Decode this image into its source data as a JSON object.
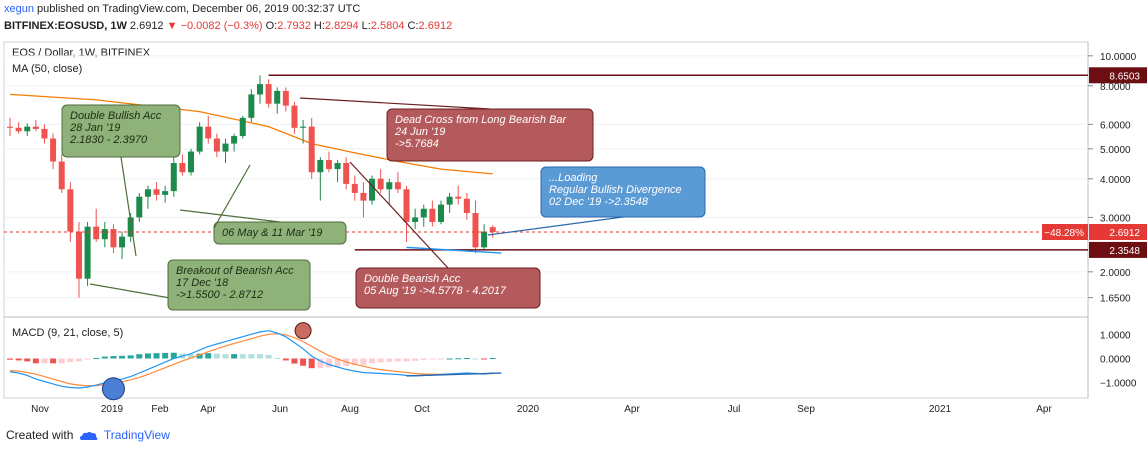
{
  "header": {
    "user": "xegun",
    "published_text": "published on TradingView.com, December 06, 2019 00:32:37 UTC",
    "symbol": "BITFINEX:EOSUSD, 1W",
    "last": "2.6912",
    "change": "▼ −0.0082 (−0.3%)",
    "o_label": "O:",
    "o_value": "2.7932",
    "h_label": "H:",
    "h_value": "2.8294",
    "l_label": "L:",
    "l_value": "2.5804",
    "c_label": "C:",
    "c_value": "2.6912"
  },
  "legend": {
    "title": "EOS / Dollar, 1W, BITFINEX",
    "ma": "MA (50, close)",
    "macd": "MACD (9, 21, close, 5)"
  },
  "footer": {
    "created_with": "Created with",
    "brand": "TradingView"
  },
  "colors": {
    "up": "#26a69a",
    "up_body": "#1b8a4a",
    "down": "#ef5350",
    "ma": "#f57c00",
    "macd_line": "#2196f3",
    "signal_line": "#ff8a3d",
    "green_box": "#8fb27a",
    "red_box": "#b45a5c",
    "blue_box": "#5b9bd5",
    "line_dark_red": "#6d0f12",
    "marker_blue": "#2962ff"
  },
  "chart_data": {
    "type": "candlestick",
    "price_axis": {
      "scale": "log",
      "ticks": [
        "10.0000",
        "8.0000",
        "6.0000",
        "5.0000",
        "4.0000",
        "3.0000",
        "2.0000",
        "1.6500"
      ]
    },
    "x_tick_labels": [
      "Nov",
      "2019",
      "Feb",
      "Apr",
      "Jun",
      "Aug",
      "Oct",
      "2020",
      "Apr",
      "Jul",
      "Sep",
      "2021",
      "Apr"
    ],
    "candles_weekly": [
      [
        5.9,
        6.3,
        5.5,
        5.85
      ],
      [
        5.85,
        6.1,
        5.6,
        5.7
      ],
      [
        5.7,
        6.05,
        5.5,
        5.9
      ],
      [
        5.9,
        6.2,
        5.7,
        5.8
      ],
      [
        5.8,
        6.0,
        5.2,
        5.4
      ],
      [
        5.4,
        5.6,
        4.3,
        4.55
      ],
      [
        4.55,
        4.8,
        3.6,
        3.7
      ],
      [
        3.7,
        3.9,
        2.5,
        2.7
      ],
      [
        2.7,
        2.9,
        1.65,
        1.9
      ],
      [
        1.9,
        2.9,
        1.8,
        2.8
      ],
      [
        2.8,
        3.2,
        2.5,
        2.55
      ],
      [
        2.55,
        2.9,
        2.4,
        2.75
      ],
      [
        2.75,
        2.85,
        2.3,
        2.4
      ],
      [
        2.4,
        2.7,
        2.2,
        2.6
      ],
      [
        2.6,
        3.1,
        2.5,
        3.0
      ],
      [
        3.0,
        3.6,
        2.9,
        3.5
      ],
      [
        3.5,
        3.8,
        3.2,
        3.7
      ],
      [
        3.7,
        3.9,
        3.4,
        3.55
      ],
      [
        3.55,
        3.8,
        3.35,
        3.65
      ],
      [
        3.65,
        4.7,
        3.5,
        4.5
      ],
      [
        4.5,
        4.8,
        4.1,
        4.2
      ],
      [
        4.2,
        5.0,
        4.1,
        4.9
      ],
      [
        4.9,
        6.1,
        4.8,
        5.9
      ],
      [
        5.9,
        6.4,
        5.2,
        5.4
      ],
      [
        5.4,
        5.6,
        4.7,
        4.9
      ],
      [
        4.9,
        5.4,
        4.5,
        5.2
      ],
      [
        5.2,
        5.6,
        4.9,
        5.5
      ],
      [
        5.5,
        6.4,
        5.4,
        6.3
      ],
      [
        6.3,
        7.8,
        6.1,
        7.5
      ],
      [
        7.5,
        8.65,
        7.0,
        8.1
      ],
      [
        8.1,
        8.4,
        6.8,
        7.0
      ],
      [
        7.0,
        7.9,
        6.5,
        7.7
      ],
      [
        7.7,
        7.9,
        6.6,
        6.9
      ],
      [
        6.9,
        7.1,
        5.6,
        5.85
      ],
      [
        5.85,
        6.2,
        5.2,
        5.9
      ],
      [
        5.9,
        6.3,
        4.0,
        4.2
      ],
      [
        4.2,
        4.7,
        3.4,
        4.6
      ],
      [
        4.6,
        4.9,
        4.2,
        4.3
      ],
      [
        4.3,
        4.6,
        3.9,
        4.5
      ],
      [
        4.5,
        4.7,
        3.7,
        3.85
      ],
      [
        3.85,
        4.1,
        3.4,
        3.6
      ],
      [
        3.6,
        3.9,
        3.0,
        3.4
      ],
      [
        3.4,
        4.1,
        3.3,
        4.0
      ],
      [
        4.0,
        4.3,
        3.6,
        3.7
      ],
      [
        3.7,
        4.0,
        3.3,
        3.9
      ],
      [
        3.9,
        4.2,
        3.6,
        3.7
      ],
      [
        3.7,
        3.8,
        2.5,
        2.9
      ],
      [
        2.9,
        3.2,
        2.75,
        3.0
      ],
      [
        3.0,
        3.3,
        2.8,
        3.2
      ],
      [
        3.2,
        3.4,
        2.8,
        2.9
      ],
      [
        2.9,
        3.4,
        2.85,
        3.3
      ],
      [
        3.3,
        3.6,
        3.1,
        3.5
      ],
      [
        3.5,
        3.8,
        3.3,
        3.45
      ],
      [
        3.45,
        3.6,
        2.95,
        3.1
      ],
      [
        3.1,
        3.4,
        2.3,
        2.4
      ],
      [
        2.4,
        2.85,
        2.35,
        2.7
      ],
      [
        2.79,
        2.83,
        2.58,
        2.69
      ]
    ],
    "ma50": [
      [
        0,
        7.5
      ],
      [
        10,
        7.2
      ],
      [
        22,
        6.6
      ],
      [
        30,
        5.9
      ],
      [
        35,
        5.2
      ],
      [
        40,
        4.85
      ],
      [
        45,
        4.55
      ],
      [
        50,
        4.3
      ],
      [
        56,
        4.15
      ]
    ],
    "horizontal_levels": [
      {
        "price": 8.6503,
        "label": "8.6503"
      },
      {
        "price": 2.3548,
        "label": "2.3548"
      }
    ],
    "current_price": {
      "price": 2.6912,
      "label": "2.6912",
      "percent_label": "−48.28%"
    },
    "annotations": [
      {
        "name": "double-bullish",
        "lines": [
          "Double Bullish Acc",
          "28 Jan '19",
          "2.1830 - 2.3970"
        ],
        "style": "green"
      },
      {
        "name": "breakout-bearish",
        "lines": [
          "Breakout of Bearish Acc",
          "17 Dec '18",
          "->1.5500 - 2.8712"
        ],
        "style": "green"
      },
      {
        "name": "may-mar",
        "lines": [
          "06 May & 11 Mar '19"
        ],
        "style": "green"
      },
      {
        "name": "dead-cross",
        "lines": [
          "Dead Cross from Long Bearish Bar",
          "24 Jun '19",
          "->5.7684"
        ],
        "style": "red"
      },
      {
        "name": "double-bearish",
        "lines": [
          "Double Bearish Acc",
          "05 Aug '19 ->4.5778 - 4.2017"
        ],
        "style": "red"
      },
      {
        "name": "bullish-divergence",
        "lines": [
          "...Loading",
          "Regular Bullish Divergence",
          "02 Dec  '19 ->2.3548"
        ],
        "style": "blue"
      }
    ],
    "macd_axis": {
      "ticks": [
        "1.0000",
        "0.0000",
        "−1.0000"
      ]
    },
    "macd_line": [
      -0.55,
      -0.6,
      -0.7,
      -0.85,
      -0.95,
      -1.05,
      -1.15,
      -1.2,
      -1.22,
      -1.18,
      -1.1,
      -1.0,
      -0.92,
      -0.85,
      -0.75,
      -0.6,
      -0.45,
      -0.3,
      -0.15,
      0.0,
      0.1,
      0.2,
      0.35,
      0.5,
      0.6,
      0.7,
      0.8,
      0.9,
      1.0,
      1.1,
      1.15,
      1.05,
      0.9,
      0.65,
      0.4,
      0.1,
      -0.1,
      -0.25,
      -0.35,
      -0.45,
      -0.52,
      -0.58,
      -0.6,
      -0.62,
      -0.64,
      -0.66,
      -0.7,
      -0.72,
      -0.7,
      -0.68,
      -0.66,
      -0.64,
      -0.62,
      -0.6,
      -0.62,
      -0.64,
      -0.6
    ],
    "signal_line": [
      -0.5,
      -0.52,
      -0.58,
      -0.65,
      -0.75,
      -0.85,
      -0.95,
      -1.05,
      -1.1,
      -1.13,
      -1.12,
      -1.08,
      -1.02,
      -0.96,
      -0.88,
      -0.78,
      -0.66,
      -0.52,
      -0.38,
      -0.24,
      -0.1,
      0.02,
      0.15,
      0.28,
      0.4,
      0.52,
      0.62,
      0.72,
      0.82,
      0.92,
      1.0,
      1.02,
      0.98,
      0.86,
      0.7,
      0.5,
      0.3,
      0.12,
      -0.02,
      -0.14,
      -0.24,
      -0.32,
      -0.4,
      -0.46,
      -0.5,
      -0.54,
      -0.58,
      -0.62,
      -0.64,
      -0.65,
      -0.65,
      -0.64,
      -0.63,
      -0.62,
      -0.62,
      -0.63,
      -0.62
    ],
    "macd_x_labels": [
      "Nov",
      "2019",
      "Feb",
      "Apr",
      "Jun",
      "Aug",
      "Oct",
      "2020",
      "Apr",
      "Jul",
      "Sep",
      "2021",
      "Apr"
    ]
  }
}
